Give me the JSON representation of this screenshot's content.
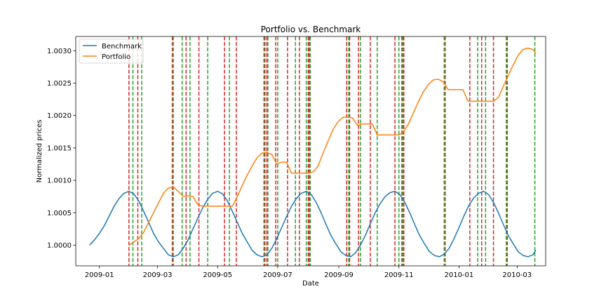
{
  "colors": {
    "benchmark": "#1f77b4",
    "portfolio": "#ff7f0e",
    "buy_line": "#2ca02c",
    "sell_line": "#d62728"
  },
  "chart_data": {
    "type": "line",
    "title": "Portfolio vs. Benchmark",
    "xlabel": "Date",
    "ylabel": "Normalized prices",
    "xlim": [
      "2008-12-08",
      "2010-03-30"
    ],
    "ylim": [
      0.99968,
      1.00322
    ],
    "x_ticks": [
      "2009-01-01",
      "2009-03-01",
      "2009-05-01",
      "2009-07-01",
      "2009-09-01",
      "2009-11-01",
      "2010-01-01",
      "2010-03-01"
    ],
    "x_tick_labels": [
      "2009-01",
      "2009-03",
      "2009-05",
      "2009-07",
      "2009-09",
      "2009-11",
      "2010-01",
      "2010-03"
    ],
    "y_ticks": [
      1.0,
      1.0005,
      1.001,
      1.0015,
      1.002,
      1.0025,
      1.003
    ],
    "y_tick_labels": [
      "1.0000",
      "1.0005",
      "1.0010",
      "1.0015",
      "1.0020",
      "1.0025",
      "1.0030"
    ],
    "grid": false,
    "legend_position": "top-left",
    "series": [
      {
        "name": "Benchmark",
        "color_key": "benchmark",
        "points": [
          [
            "2008-12-22",
            1.0
          ],
          [
            "2008-12-27",
            1.00008
          ],
          [
            "2009-01-01",
            1.00018
          ],
          [
            "2009-01-06",
            1.0003
          ],
          [
            "2009-01-11",
            1.00045
          ],
          [
            "2009-01-16",
            1.0006
          ],
          [
            "2009-01-21",
            1.00072
          ],
          [
            "2009-01-26",
            1.0008
          ],
          [
            "2009-01-31",
            1.00083
          ],
          [
            "2009-02-05",
            1.00079
          ],
          [
            "2009-02-10",
            1.00068
          ],
          [
            "2009-02-15",
            1.00052
          ],
          [
            "2009-02-20",
            1.00035
          ],
          [
            "2009-02-25",
            1.00018
          ],
          [
            "2009-03-02",
            1.00005
          ],
          [
            "2009-03-07",
            0.99995
          ],
          [
            "2009-03-12",
            0.99985
          ],
          [
            "2009-03-17",
            0.99982
          ],
          [
            "2009-03-22",
            0.99985
          ],
          [
            "2009-03-27",
            0.99995
          ],
          [
            "2009-04-01",
            1.00008
          ],
          [
            "2009-04-06",
            1.00025
          ],
          [
            "2009-04-11",
            1.00042
          ],
          [
            "2009-04-16",
            1.00058
          ],
          [
            "2009-04-21",
            1.00071
          ],
          [
            "2009-04-26",
            1.0008
          ],
          [
            "2009-05-01",
            1.00083
          ],
          [
            "2009-05-06",
            1.00079
          ],
          [
            "2009-05-11",
            1.00068
          ],
          [
            "2009-05-16",
            1.00052
          ],
          [
            "2009-05-21",
            1.00035
          ],
          [
            "2009-05-26",
            1.00018
          ],
          [
            "2009-05-31",
            1.00005
          ],
          [
            "2009-06-05",
            0.99992
          ],
          [
            "2009-06-10",
            0.99985
          ],
          [
            "2009-06-15",
            0.99982
          ],
          [
            "2009-06-20",
            0.99985
          ],
          [
            "2009-06-25",
            0.99995
          ],
          [
            "2009-06-30",
            1.0001
          ],
          [
            "2009-07-05",
            1.00027
          ],
          [
            "2009-07-10",
            1.00044
          ],
          [
            "2009-07-15",
            1.0006
          ],
          [
            "2009-07-20",
            1.00072
          ],
          [
            "2009-07-25",
            1.0008
          ],
          [
            "2009-07-30",
            1.00083
          ],
          [
            "2009-08-04",
            1.00078
          ],
          [
            "2009-08-09",
            1.00066
          ],
          [
            "2009-08-14",
            1.0005
          ],
          [
            "2009-08-19",
            1.00032
          ],
          [
            "2009-08-24",
            1.00015
          ],
          [
            "2009-08-29",
            1.00002
          ],
          [
            "2009-09-03",
            0.9999
          ],
          [
            "2009-09-08",
            0.99984
          ],
          [
            "2009-09-13",
            0.99982
          ],
          [
            "2009-09-18",
            0.99988
          ],
          [
            "2009-09-23",
            1.0
          ],
          [
            "2009-09-28",
            1.00015
          ],
          [
            "2009-10-03",
            1.00033
          ],
          [
            "2009-10-08",
            1.0005
          ],
          [
            "2009-10-13",
            1.00064
          ],
          [
            "2009-10-18",
            1.00075
          ],
          [
            "2009-10-23",
            1.00081
          ],
          [
            "2009-10-28",
            1.00083
          ],
          [
            "2009-11-02",
            1.00078
          ],
          [
            "2009-11-07",
            1.00066
          ],
          [
            "2009-11-12",
            1.0005
          ],
          [
            "2009-11-17",
            1.00032
          ],
          [
            "2009-11-22",
            1.00015
          ],
          [
            "2009-11-27",
            1.00002
          ],
          [
            "2009-12-02",
            0.9999
          ],
          [
            "2009-12-07",
            0.99984
          ],
          [
            "2009-12-12",
            0.99982
          ],
          [
            "2009-12-17",
            0.99986
          ],
          [
            "2009-12-22",
            0.99995
          ],
          [
            "2009-12-27",
            1.0001
          ],
          [
            "2010-01-01",
            1.00027
          ],
          [
            "2010-01-06",
            1.00045
          ],
          [
            "2010-01-11",
            1.00061
          ],
          [
            "2010-01-16",
            1.00073
          ],
          [
            "2010-01-21",
            1.0008
          ],
          [
            "2010-01-26",
            1.00083
          ],
          [
            "2010-01-31",
            1.00078
          ],
          [
            "2010-02-05",
            1.00066
          ],
          [
            "2010-02-10",
            1.0005
          ],
          [
            "2010-02-15",
            1.00032
          ],
          [
            "2010-02-20",
            1.00015
          ],
          [
            "2010-02-25",
            1.00002
          ],
          [
            "2010-03-02",
            0.9999
          ],
          [
            "2010-03-07",
            0.99984
          ],
          [
            "2010-03-12",
            0.99982
          ],
          [
            "2010-03-17",
            0.99985
          ],
          [
            "2010-03-20",
            0.99992
          ]
        ]
      },
      {
        "name": "Portfolio",
        "color_key": "portfolio",
        "points": [
          [
            "2009-01-31",
            1.0
          ],
          [
            "2009-02-05",
            1.00005
          ],
          [
            "2009-02-10",
            1.0001
          ],
          [
            "2009-02-15",
            1.0002
          ],
          [
            "2009-02-20",
            1.00035
          ],
          [
            "2009-02-25",
            1.0005
          ],
          [
            "2009-03-02",
            1.00065
          ],
          [
            "2009-03-07",
            1.0008
          ],
          [
            "2009-03-12",
            1.00088
          ],
          [
            "2009-03-17",
            1.0009
          ],
          [
            "2009-03-22",
            1.00083
          ],
          [
            "2009-03-27",
            1.00075
          ],
          [
            "2009-04-01",
            1.00076
          ],
          [
            "2009-04-06",
            1.00075
          ],
          [
            "2009-04-11",
            1.00062
          ],
          [
            "2009-04-16",
            1.0006
          ],
          [
            "2009-05-16",
            1.0006
          ],
          [
            "2009-05-21",
            1.00075
          ],
          [
            "2009-05-26",
            1.00092
          ],
          [
            "2009-05-31",
            1.00108
          ],
          [
            "2009-06-05",
            1.00122
          ],
          [
            "2009-06-10",
            1.00135
          ],
          [
            "2009-06-15",
            1.00142
          ],
          [
            "2009-06-20",
            1.00143
          ],
          [
            "2009-06-25",
            1.0014
          ],
          [
            "2009-06-30",
            1.00125
          ],
          [
            "2009-07-05",
            1.00128
          ],
          [
            "2009-07-10",
            1.00128
          ],
          [
            "2009-07-15",
            1.00111
          ],
          [
            "2009-08-01",
            1.00111
          ],
          [
            "2009-08-06",
            1.00113
          ],
          [
            "2009-08-11",
            1.00122
          ],
          [
            "2009-08-16",
            1.00142
          ],
          [
            "2009-08-21",
            1.0016
          ],
          [
            "2009-08-26",
            1.00178
          ],
          [
            "2009-08-31",
            1.0019
          ],
          [
            "2009-09-05",
            1.00197
          ],
          [
            "2009-09-10",
            1.00198
          ],
          [
            "2009-09-15",
            1.00196
          ],
          [
            "2009-09-20",
            1.00185
          ],
          [
            "2009-09-25",
            1.00187
          ],
          [
            "2009-10-05",
            1.00187
          ],
          [
            "2009-10-10",
            1.0017
          ],
          [
            "2009-11-01",
            1.0017
          ],
          [
            "2009-11-06",
            1.00175
          ],
          [
            "2009-11-11",
            1.00188
          ],
          [
            "2009-11-16",
            1.00205
          ],
          [
            "2009-11-21",
            1.00222
          ],
          [
            "2009-11-26",
            1.00237
          ],
          [
            "2009-12-01",
            1.00248
          ],
          [
            "2009-12-06",
            1.00255
          ],
          [
            "2009-12-11",
            1.00256
          ],
          [
            "2009-12-16",
            1.00252
          ],
          [
            "2009-12-21",
            1.0024
          ],
          [
            "2010-01-05",
            1.0024
          ],
          [
            "2010-01-10",
            1.00222
          ],
          [
            "2010-02-05",
            1.00222
          ],
          [
            "2010-02-10",
            1.00228
          ],
          [
            "2010-02-15",
            1.00245
          ],
          [
            "2010-02-20",
            1.00262
          ],
          [
            "2010-02-25",
            1.00278
          ],
          [
            "2010-03-02",
            1.00293
          ],
          [
            "2010-03-07",
            1.00302
          ],
          [
            "2010-03-12",
            1.00304
          ],
          [
            "2010-03-17",
            1.00302
          ],
          [
            "2010-03-20",
            1.00296
          ]
        ]
      }
    ],
    "vertical_lines": {
      "sell_color_key": "sell_line",
      "buy_color_key": "buy_line",
      "sell": [
        "2009-01-31",
        "2009-02-09",
        "2009-03-16",
        "2009-03-30",
        "2009-04-12",
        "2009-05-08",
        "2009-05-20",
        "2009-06-18",
        "2009-06-20",
        "2009-06-29",
        "2009-07-11",
        "2009-07-23",
        "2009-08-01",
        "2009-08-02",
        "2009-09-09",
        "2009-09-12",
        "2009-09-21",
        "2009-10-03",
        "2009-10-28",
        "2009-11-04",
        "2009-11-06",
        "2009-12-18",
        "2010-01-12",
        "2010-01-24",
        "2010-02-05",
        "2010-02-19"
      ],
      "buy": [
        "2009-02-04",
        "2009-02-13",
        "2009-03-17",
        "2009-03-26",
        "2009-04-03",
        "2009-04-21",
        "2009-05-13",
        "2009-06-17",
        "2009-06-21",
        "2009-07-01",
        "2009-07-19",
        "2009-07-30",
        "2009-08-03",
        "2009-09-11",
        "2009-09-23",
        "2009-10-10",
        "2009-11-01",
        "2009-11-05",
        "2009-12-17",
        "2010-01-20",
        "2010-01-28",
        "2010-02-18",
        "2010-03-19"
      ]
    }
  }
}
